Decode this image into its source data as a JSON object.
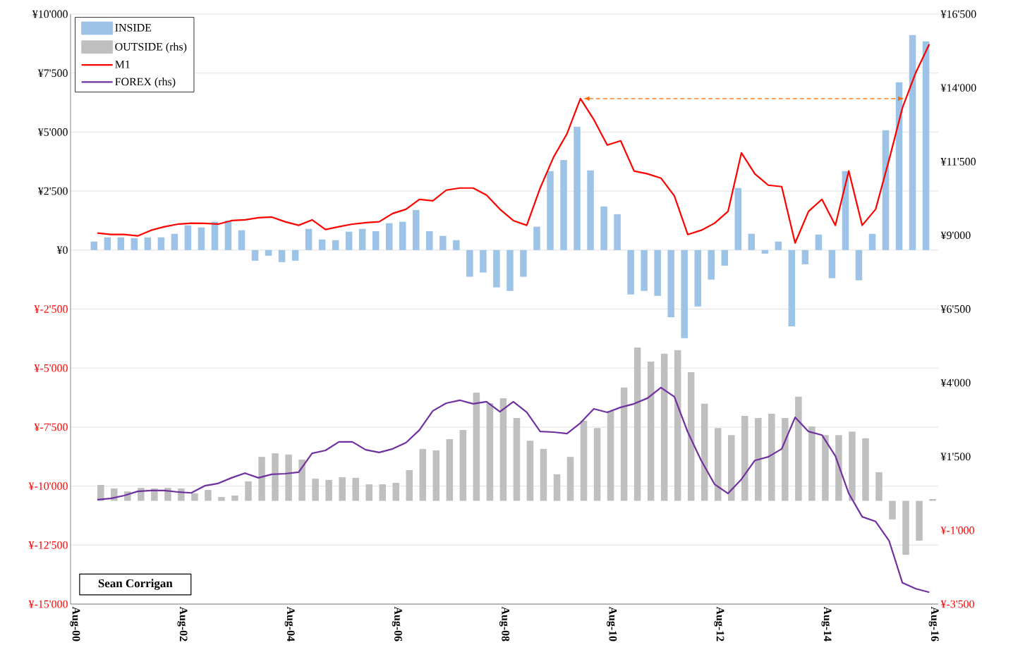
{
  "chart_data": {
    "type": "bar",
    "x": [
      "2001-01",
      "2001-04",
      "2001-07",
      "2001-10",
      "2002-01",
      "2002-04",
      "2002-07",
      "2002-10",
      "2003-01",
      "2003-04",
      "2003-07",
      "2003-10",
      "2004-01",
      "2004-04",
      "2004-07",
      "2004-10",
      "2005-01",
      "2005-04",
      "2005-07",
      "2005-10",
      "2006-01",
      "2006-04",
      "2006-07",
      "2006-10",
      "2007-01",
      "2007-04",
      "2007-07",
      "2007-10",
      "2008-01",
      "2008-04",
      "2008-07",
      "2008-10",
      "2009-01",
      "2009-04",
      "2009-07",
      "2009-10",
      "2010-01",
      "2010-04",
      "2010-07",
      "2010-10",
      "2011-01",
      "2011-04",
      "2011-07",
      "2011-10",
      "2012-01",
      "2012-04",
      "2012-07",
      "2012-10",
      "2013-01",
      "2013-04",
      "2013-07",
      "2013-10",
      "2014-01",
      "2014-04",
      "2014-07",
      "2014-10",
      "2015-01",
      "2015-04",
      "2015-07",
      "2015-10",
      "2016-01",
      "2016-04",
      "2016-07"
    ],
    "series": [
      {
        "name": "INSIDE",
        "color": "#9dc3e6",
        "values": [
          360,
          540,
          540,
          510,
          540,
          540,
          690,
          1050,
          960,
          1200,
          1250,
          840,
          -450,
          -240,
          -510,
          -450,
          900,
          450,
          420,
          780,
          900,
          800,
          1140,
          1200,
          1700,
          800,
          600,
          420,
          -1130,
          -950,
          -1580,
          -1730,
          -1130,
          990,
          3350,
          3820,
          5230,
          3380,
          1850,
          1520,
          -1880,
          -1730,
          -1940,
          -2840,
          -3730,
          -2390,
          -1250,
          -660,
          2630,
          690,
          -150,
          360,
          -3230,
          -600,
          660,
          -1190,
          3350,
          -1280,
          690,
          5080,
          7110,
          9110,
          8840
        ]
      },
      {
        "name": "OUTSIDE (rhs)",
        "axis": "y2",
        "color": "#bfbfbf",
        "values": [
          540,
          420,
          320,
          440,
          420,
          440,
          420,
          250,
          370,
          130,
          180,
          660,
          1490,
          1610,
          1570,
          1400,
          750,
          710,
          800,
          780,
          560,
          560,
          610,
          1040,
          1760,
          1710,
          2090,
          2400,
          3670,
          3310,
          3480,
          2810,
          2040,
          1760,
          900,
          1490,
          2710,
          2470,
          3050,
          3840,
          5200,
          4720,
          4990,
          5110,
          4360,
          3290,
          2470,
          2230,
          2880,
          2810,
          2950,
          2810,
          3530,
          2520,
          2230,
          2230,
          2350,
          2120,
          970,
          -630,
          -1830,
          -1350,
          60
        ]
      },
      {
        "name": "M1",
        "type": "line",
        "color": "#ff0000",
        "values": [
          720,
          660,
          660,
          600,
          840,
          990,
          1100,
          1140,
          1130,
          1100,
          1250,
          1280,
          1370,
          1400,
          1200,
          1050,
          1280,
          870,
          990,
          1100,
          1160,
          1200,
          1550,
          1730,
          2150,
          2090,
          2540,
          2630,
          2630,
          2330,
          1730,
          1250,
          1050,
          2630,
          3940,
          4930,
          6420,
          5530,
          4450,
          4630,
          3350,
          3230,
          3050,
          2300,
          660,
          840,
          1140,
          1640,
          4120,
          3230,
          2750,
          2690,
          300,
          1640,
          2150,
          1050,
          3350,
          1050,
          1730,
          3820,
          6030,
          7530,
          8720
        ]
      },
      {
        "name": "FOREX (rhs)",
        "type": "line",
        "axis": "y2",
        "color": "#7030a0",
        "values": [
          40,
          80,
          180,
          320,
          350,
          350,
          300,
          270,
          510,
          590,
          780,
          940,
          780,
          900,
          920,
          970,
          1610,
          1710,
          2000,
          2000,
          1730,
          1640,
          1760,
          1970,
          2400,
          3050,
          3310,
          3410,
          3290,
          3360,
          3020,
          3360,
          3000,
          2350,
          2330,
          2280,
          2640,
          3120,
          3000,
          3170,
          3290,
          3480,
          3840,
          3530,
          2330,
          1370,
          560,
          250,
          730,
          1370,
          1490,
          1760,
          2830,
          2350,
          2230,
          1520,
          250,
          -540,
          -700,
          -1350,
          -2780,
          -2980,
          -3100
        ]
      }
    ],
    "xlim": [
      "2000-07",
      "2016-09"
    ],
    "xticks": [
      {
        "value": "2000-08",
        "label": "Aug-00"
      },
      {
        "value": "2002-08",
        "label": "Aug-02"
      },
      {
        "value": "2004-08",
        "label": "Aug-04"
      },
      {
        "value": "2006-08",
        "label": "Aug-06"
      },
      {
        "value": "2008-08",
        "label": "Aug-08"
      },
      {
        "value": "2010-08",
        "label": "Aug-10"
      },
      {
        "value": "2012-08",
        "label": "Aug-12"
      },
      {
        "value": "2014-08",
        "label": "Aug-14"
      },
      {
        "value": "2016-08",
        "label": "Aug-16"
      }
    ],
    "ylim": [
      -15000,
      10000
    ],
    "yticks": [
      {
        "value": -15000,
        "label": "¥-15'000"
      },
      {
        "value": -12500,
        "label": "¥-12'500"
      },
      {
        "value": -10000,
        "label": "¥-10'000"
      },
      {
        "value": -7500,
        "label": "¥-7'500"
      },
      {
        "value": -5000,
        "label": "¥-5'000"
      },
      {
        "value": -2500,
        "label": "¥-2'500"
      },
      {
        "value": 0,
        "label": "¥0"
      },
      {
        "value": 2500,
        "label": "¥2'500"
      },
      {
        "value": 5000,
        "label": "¥5'000"
      },
      {
        "value": 7500,
        "label": "¥7'500"
      },
      {
        "value": 10000,
        "label": "¥10'000"
      }
    ],
    "y2lim": [
      -3500,
      16500
    ],
    "y2ticks": [
      {
        "value": -3500,
        "label": "¥-3'500"
      },
      {
        "value": -1000,
        "label": "¥-1'000"
      },
      {
        "value": 1500,
        "label": "¥1'500"
      },
      {
        "value": 4000,
        "label": "¥4'000"
      },
      {
        "value": 6500,
        "label": "¥6'500"
      },
      {
        "value": 9000,
        "label": "¥9'000"
      },
      {
        "value": 11500,
        "label": "¥11'500"
      },
      {
        "value": 14000,
        "label": "¥14'000"
      },
      {
        "value": 16500,
        "label": "¥16'500"
      }
    ],
    "grid": "y",
    "legend": "top left",
    "annotations": [
      "Sean Corrigan"
    ]
  }
}
